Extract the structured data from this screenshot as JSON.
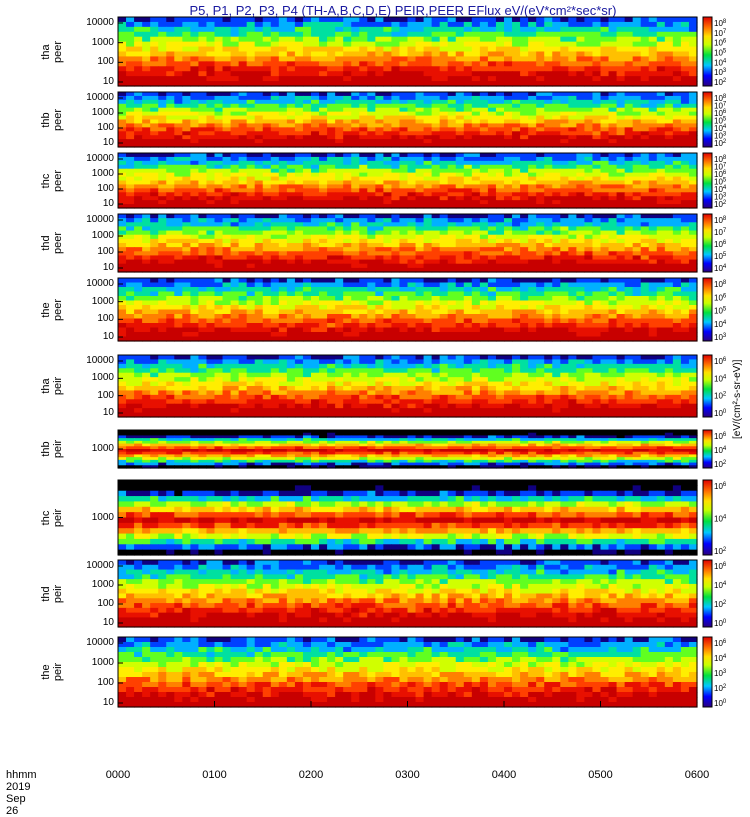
{
  "title": "P5, P1, P2, P3, P4 (TH-A,B,C,D,E) PEIR,PEER EFlux eV/(eV*cm²*sec*sr)",
  "footer": {
    "x_axis_name": "hhmm",
    "date": "2019 Sep 26"
  },
  "colorbar_unit": "[eV/(cm²-s-sr-eV)]",
  "chart_data": {
    "type": "heatmap",
    "xlim": [
      "0000",
      "0600"
    ],
    "x_ticks": [
      "0000",
      "0100",
      "0200",
      "0300",
      "0400",
      "0500",
      "0600"
    ],
    "panels": [
      {
        "name": "tha peer",
        "y_ticks": [
          "10000",
          "1000",
          "100",
          "10"
        ],
        "cb_ticks": [
          "10",
          "10",
          "10",
          "10",
          "10",
          "10",
          "10"
        ],
        "cb_exps": [
          "8",
          "7",
          "6",
          "5",
          "4",
          "3",
          "2"
        ]
      },
      {
        "name": "thb peer",
        "y_ticks": [
          "10000",
          "1000",
          "100",
          "10"
        ],
        "cb_ticks": [
          "10",
          "10",
          "10",
          "10",
          "10",
          "10",
          "10"
        ],
        "cb_exps": [
          "8",
          "7",
          "6",
          "5",
          "4",
          "3",
          "2"
        ]
      },
      {
        "name": "thc peer",
        "y_ticks": [
          "10000",
          "1000",
          "100",
          "10"
        ],
        "cb_ticks": [
          "10",
          "10",
          "10",
          "10",
          "10",
          "10",
          "10"
        ],
        "cb_exps": [
          "8",
          "7",
          "6",
          "5",
          "4",
          "3",
          "2"
        ]
      },
      {
        "name": "thd peer",
        "y_ticks": [
          "10000",
          "1000",
          "100",
          "10"
        ],
        "cb_ticks": [
          "10",
          "10",
          "10",
          "10",
          "10"
        ],
        "cb_exps": [
          "8",
          "7",
          "6",
          "5",
          "4"
        ]
      },
      {
        "name": "the peer",
        "y_ticks": [
          "10000",
          "1000",
          "100",
          "10"
        ],
        "cb_ticks": [
          "10",
          "10",
          "10",
          "10",
          "10"
        ],
        "cb_exps": [
          "8",
          "6",
          "5",
          "4",
          "3"
        ]
      },
      {
        "name": "tha peir",
        "y_ticks": [
          "10000",
          "1000",
          "100",
          "10"
        ],
        "cb_ticks": [
          "10",
          "10",
          "10",
          "10"
        ],
        "cb_exps": [
          "6",
          "4",
          "2",
          "0"
        ]
      },
      {
        "name": "thb peir",
        "y_ticks": [
          "1000"
        ],
        "cb_ticks": [
          "10",
          "10",
          "10"
        ],
        "cb_exps": [
          "6",
          "4",
          "2"
        ]
      },
      {
        "name": "thc peir",
        "y_ticks": [
          "1000"
        ],
        "cb_ticks": [
          "10",
          "10",
          "10"
        ],
        "cb_exps": [
          "6",
          "4",
          "2"
        ]
      },
      {
        "name": "thd peir",
        "y_ticks": [
          "10000",
          "1000",
          "100",
          "10"
        ],
        "cb_ticks": [
          "10",
          "10",
          "10",
          "10"
        ],
        "cb_exps": [
          "6",
          "4",
          "2",
          "0"
        ]
      },
      {
        "name": "the peir",
        "y_ticks": [
          "10000",
          "1000",
          "100",
          "10"
        ],
        "cb_ticks": [
          "10",
          "10",
          "10",
          "10",
          "10"
        ],
        "cb_exps": [
          "6",
          "4",
          "3",
          "2",
          "0"
        ]
      }
    ]
  },
  "colors": {
    "title": "#1a1aa0"
  }
}
